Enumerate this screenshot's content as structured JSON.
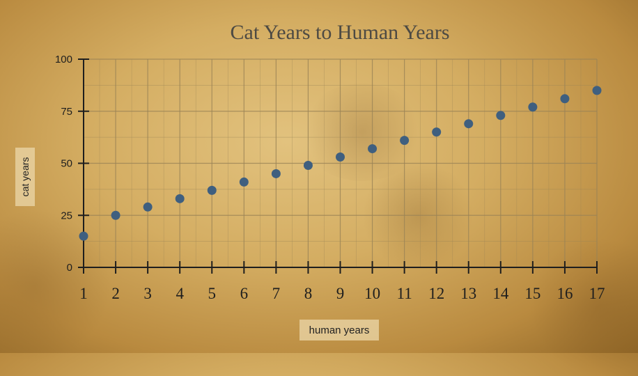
{
  "chart_data": {
    "type": "scatter",
    "title": "Cat Years to Human Years",
    "xlabel": "human years",
    "ylabel": "cat years",
    "x": [
      1,
      2,
      3,
      4,
      5,
      6,
      7,
      8,
      9,
      10,
      11,
      12,
      13,
      14,
      15,
      16,
      17
    ],
    "y": [
      15,
      25,
      29,
      33,
      37,
      41,
      45,
      49,
      53,
      57,
      61,
      65,
      69,
      73,
      77,
      81,
      85
    ],
    "xlim": [
      1,
      17
    ],
    "ylim": [
      0,
      100
    ],
    "yticks": [
      0,
      25,
      50,
      75,
      100
    ],
    "xticks": [
      1,
      2,
      3,
      4,
      5,
      6,
      7,
      8,
      9,
      10,
      11,
      12,
      13,
      14,
      15,
      16,
      17
    ],
    "grid": true,
    "colors": {
      "marker": "#3f5f7f",
      "grid": "#9a8356",
      "axis": "#1e1e1e"
    }
  }
}
